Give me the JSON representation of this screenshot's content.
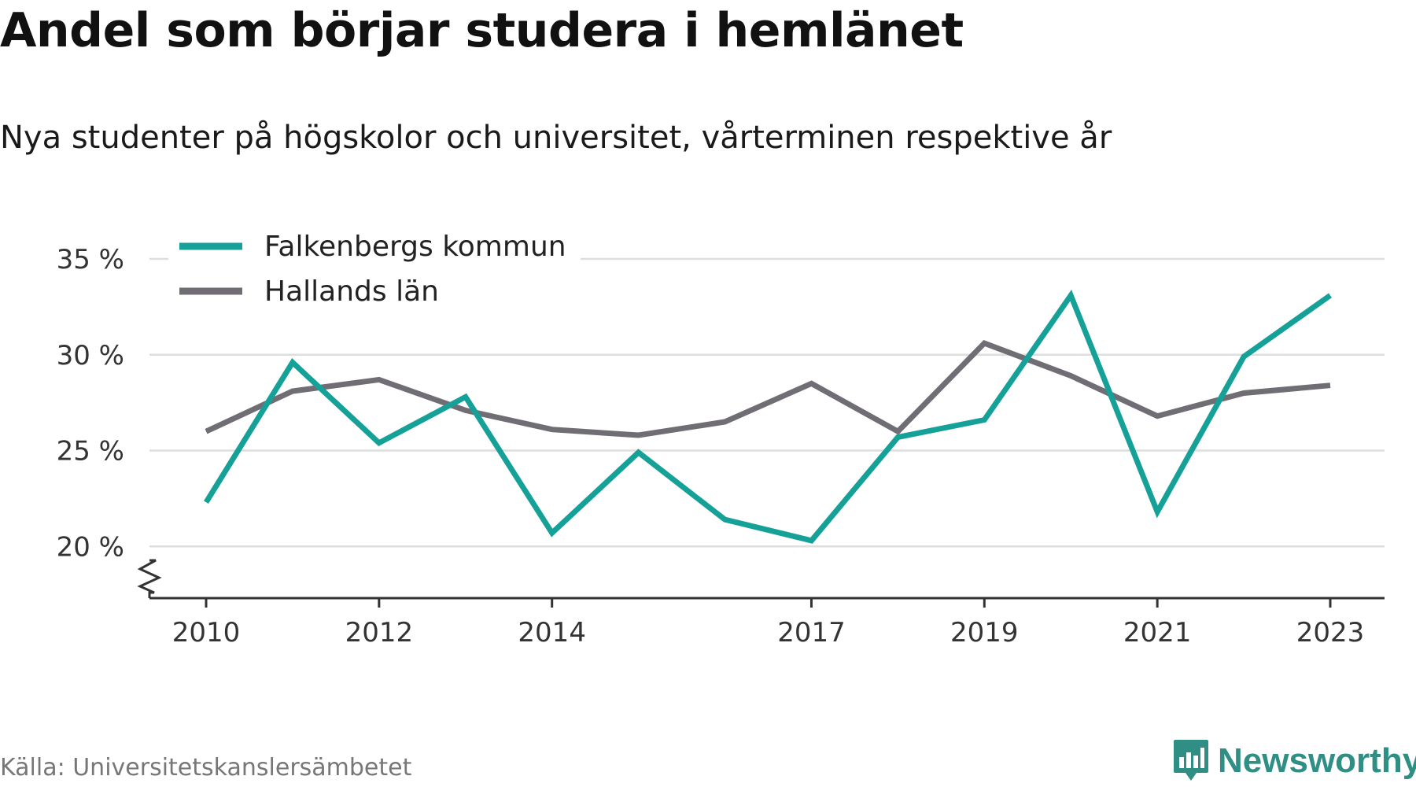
{
  "title": "Andel som börjar studera i hemlänet",
  "subtitle": "Nya studenter på högskolor och universitet, vårterminen respektive år",
  "source": "Källa: Universitetskanslersämbetet",
  "brand": {
    "name": "Newsworthy",
    "logo_icon": "newsworthy-bar-chart-logo-icon",
    "color": "#2f8f85"
  },
  "chart_data": {
    "type": "line",
    "x": [
      2010,
      2011,
      2012,
      2013,
      2014,
      2015,
      2016,
      2017,
      2018,
      2019,
      2020,
      2021,
      2022,
      2023
    ],
    "x_ticks": [
      2010,
      2012,
      2014,
      2017,
      2019,
      2021,
      2023
    ],
    "y_ticks": [
      {
        "value": 20,
        "label": "20 %"
      },
      {
        "value": 25,
        "label": "25 %"
      },
      {
        "value": 30,
        "label": "30 %"
      },
      {
        "value": 35,
        "label": "35 %"
      }
    ],
    "ylim": [
      17.3,
      35
    ],
    "y_axis_break": true,
    "grid": true,
    "legend_position": "top-left",
    "series": [
      {
        "name": "Falkenbergs kommun",
        "color": "#15a198",
        "values": [
          22.3,
          29.6,
          25.4,
          27.8,
          20.7,
          24.9,
          21.4,
          20.3,
          25.7,
          26.6,
          33.1,
          21.8,
          29.9,
          33.1
        ]
      },
      {
        "name": "Hallands län",
        "color": "#706d74",
        "values": [
          26.0,
          28.1,
          28.7,
          27.1,
          26.1,
          25.8,
          26.5,
          28.5,
          26.0,
          30.6,
          28.9,
          26.8,
          28.0,
          28.4
        ]
      }
    ]
  }
}
